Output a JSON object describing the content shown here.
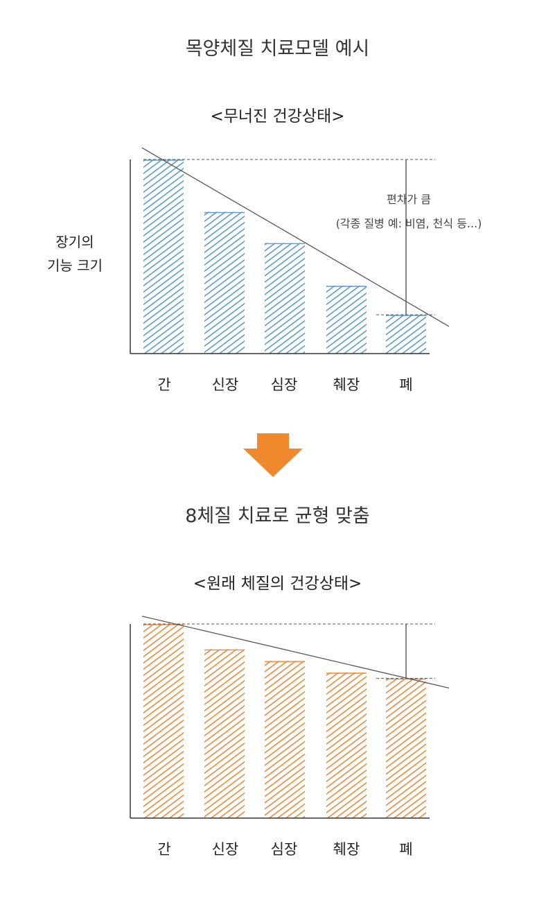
{
  "page_title": "목양체질 치료모델 예시",
  "transition_title": "8체질 치료로 균형 맞춤",
  "ylabel_line1": "장기의",
  "ylabel_line2": "기능 크기",
  "annotation_line1": "편차가 큼",
  "annotation_line2": "(각종 질병 예: 비염, 천식 등...)",
  "colors": {
    "before": "#5b9bd5",
    "after": "#f0883a",
    "arrow": "#f0882e",
    "axis": "#333333"
  },
  "chart_data": [
    {
      "type": "bar",
      "title": "<무너진 건강상태>",
      "categories": [
        "간",
        "신장",
        "심장",
        "췌장",
        "폐"
      ],
      "values": [
        100,
        73,
        57,
        35,
        20
      ],
      "ylim": [
        0,
        100
      ],
      "color": "#5b9bd5",
      "trend_line": [
        106,
        14
      ],
      "grid": false
    },
    {
      "type": "bar",
      "title": "<원래 체질의 건강상태>",
      "categories": [
        "간",
        "신장",
        "심장",
        "췌장",
        "폐"
      ],
      "values": [
        100,
        87,
        81,
        75,
        72
      ],
      "ylim": [
        0,
        100
      ],
      "color": "#f0883a",
      "trend_line": [
        104,
        67
      ],
      "grid": false
    }
  ]
}
